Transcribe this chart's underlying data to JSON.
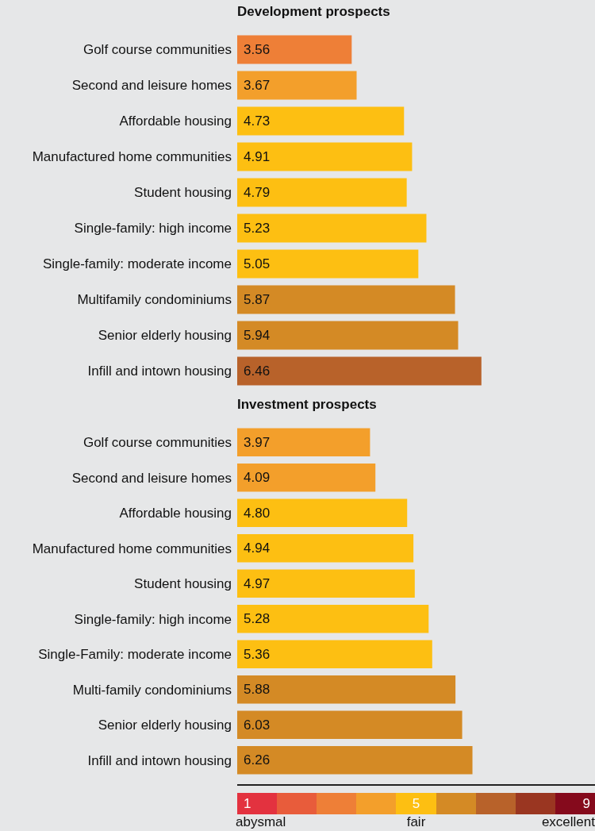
{
  "chart_data": [
    {
      "type": "bar",
      "orientation": "horizontal",
      "title": "Development prospects",
      "categories": [
        "Golf course communities",
        "Second and leisure homes",
        "Affordable housing",
        "Manufactured home communities",
        "Student housing",
        "Single-family: high income",
        "Single-family: moderate income",
        "Multifamily condominiums",
        "Senior elderly housing",
        "Infill and intown housing"
      ],
      "values": [
        3.56,
        3.67,
        4.73,
        4.91,
        4.79,
        5.23,
        5.05,
        5.87,
        5.94,
        6.46
      ],
      "value_labels": [
        "3.56",
        "3.67",
        "4.73",
        "4.91",
        "4.79",
        "5.23",
        "5.05",
        "5.87",
        "5.94",
        "6.46"
      ],
      "colors": [
        "#ee7f37",
        "#f39f2b",
        "#fdbf12",
        "#fdbf12",
        "#fdbf12",
        "#fdbf12",
        "#fdbf12",
        "#d48a25",
        "#d48a25",
        "#b8622a"
      ],
      "tick_labels": "y"
    },
    {
      "type": "bar",
      "orientation": "horizontal",
      "title": "Investment prospects",
      "categories": [
        "Golf course communities",
        "Second and leisure homes",
        "Affordable housing",
        "Manufactured home communities",
        "Student housing",
        "Single-family: high income",
        "Single-Family: moderate income",
        "Multi-family condominiums",
        "Senior elderly housing",
        "Infill and intown housing"
      ],
      "values": [
        3.97,
        4.09,
        4.8,
        4.94,
        4.97,
        5.28,
        5.36,
        5.88,
        6.03,
        6.26
      ],
      "value_labels": [
        "3.97",
        "4.09",
        "4.80",
        "4.94",
        "4.97",
        "5.28",
        "5.36",
        "5.88",
        "6.03",
        "6.26"
      ],
      "colors": [
        "#f39f2b",
        "#f39f2b",
        "#fdbf12",
        "#fdbf12",
        "#fdbf12",
        "#fdbf12",
        "#fdbf12",
        "#d48a25",
        "#d48a25",
        "#d48a25"
      ],
      "tick_labels": "y"
    },
    {
      "type": "other",
      "annotations": [
        "1",
        "5",
        "9",
        "abysmal",
        "fair",
        "excellent"
      ],
      "colors": [
        "#e3323f",
        "#e85c3b",
        "#ee7f37",
        "#f39f2b",
        "#fdbf12",
        "#d48a25",
        "#b8622a",
        "#9a3621",
        "#850a1c"
      ]
    }
  ]
}
